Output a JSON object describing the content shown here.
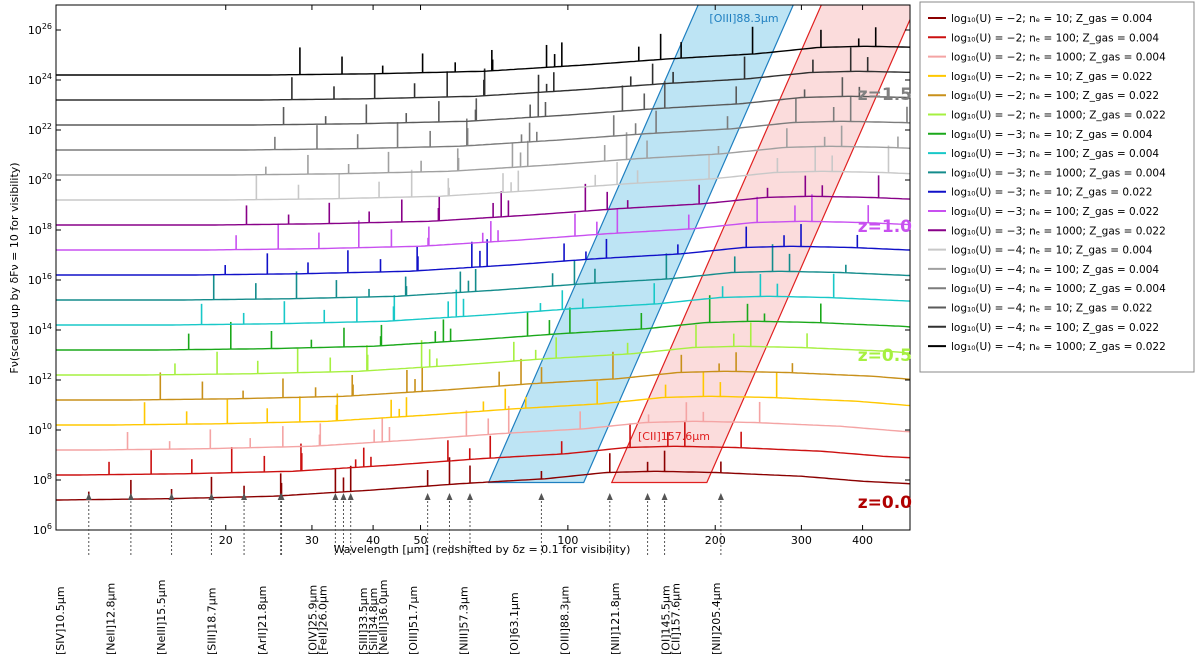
{
  "chart_data": {
    "type": "line",
    "ylabel": "Fν(scaled up by δFν = 10 for visibility)",
    "xlabel": "Wavelength [μm] (redshifted by δz = 0.1 for visibility)",
    "xscale": "log",
    "yscale": "log",
    "xlim": [
      9.0,
      500
    ],
    "ylim": [
      1000000.0,
      1e+27
    ],
    "x_ticks": [
      {
        "value": 20,
        "label": "20"
      },
      {
        "value": 30,
        "label": "30"
      },
      {
        "value": 40,
        "label": "40"
      },
      {
        "value": 50,
        "label": "50"
      },
      {
        "value": 100,
        "label": "100"
      },
      {
        "value": 200,
        "label": "200"
      },
      {
        "value": 300,
        "label": "300"
      },
      {
        "value": 400,
        "label": "400"
      }
    ],
    "y_ticks": [
      {
        "exp": 6,
        "label": "10^6"
      },
      {
        "exp": 8,
        "label": "10^8"
      },
      {
        "exp": 10,
        "label": "10^10"
      },
      {
        "exp": 12,
        "label": "10^12"
      },
      {
        "exp": 14,
        "label": "10^14"
      },
      {
        "exp": 16,
        "label": "10^16"
      },
      {
        "exp": 18,
        "label": "10^18"
      },
      {
        "exp": 20,
        "label": "10^20"
      },
      {
        "exp": 22,
        "label": "10^22"
      },
      {
        "exp": 24,
        "label": "10^24"
      },
      {
        "exp": 26,
        "label": "10^26"
      }
    ],
    "series": [
      {
        "legend": [
          "−2",
          "10",
          "0.004"
        ],
        "color": "#8b0000"
      },
      {
        "legend": [
          "−2",
          "100",
          "0.004"
        ],
        "color": "#cc1010"
      },
      {
        "legend": [
          "−2",
          "1000",
          "0.004"
        ],
        "color": "#f4a4a4"
      },
      {
        "legend": [
          "−2",
          "10",
          "0.022"
        ],
        "color": "#ffc800"
      },
      {
        "legend": [
          "−2",
          "100",
          "0.022"
        ],
        "color": "#c8901a"
      },
      {
        "legend": [
          "−2",
          "1000",
          "0.022"
        ],
        "color": "#a6f040"
      },
      {
        "legend": [
          "−3",
          "10",
          "0.004"
        ],
        "color": "#1aa81a"
      },
      {
        "legend": [
          "−3",
          "100",
          "0.004"
        ],
        "color": "#18c8c8"
      },
      {
        "legend": [
          "−3",
          "1000",
          "0.004"
        ],
        "color": "#148c8c"
      },
      {
        "legend": [
          "−3",
          "10",
          "0.022"
        ],
        "color": "#1010c8"
      },
      {
        "legend": [
          "−3",
          "100",
          "0.022"
        ],
        "color": "#c850f0"
      },
      {
        "legend": [
          "−3",
          "1000",
          "0.022"
        ],
        "color": "#880088"
      },
      {
        "legend": [
          "−4",
          "10",
          "0.004"
        ],
        "color": "#c8c8c8"
      },
      {
        "legend": [
          "−4",
          "100",
          "0.004"
        ],
        "color": "#a0a0a0"
      },
      {
        "legend": [
          "−4",
          "1000",
          "0.004"
        ],
        "color": "#7c7c7c"
      },
      {
        "legend": [
          "−4",
          "10",
          "0.022"
        ],
        "color": "#5a5a5a"
      },
      {
        "legend": [
          "−4",
          "100",
          "0.022"
        ],
        "color": "#303030"
      },
      {
        "legend": [
          "−4",
          "1000",
          "0.022"
        ],
        "color": "#000000"
      }
    ],
    "continuum_base_log": [
      7.2,
      7.25,
      7.35,
      7.6,
      7.85,
      8.05,
      8.3,
      8.35,
      8.3,
      8.15,
      7.95,
      7.85
    ],
    "continuum_base_x": [
      9.0,
      15,
      25,
      40,
      60,
      90,
      120,
      150,
      200,
      300,
      400,
      500
    ],
    "lines": [
      {
        "label": "[SIV]10.5μm",
        "rest": 10.5
      },
      {
        "label": "[NeII]12.8μm",
        "rest": 12.8
      },
      {
        "label": "[NeIII]15.5μm",
        "rest": 15.5
      },
      {
        "label": "[SIII]18.7μm",
        "rest": 18.7
      },
      {
        "label": "[ArII]21.8μm",
        "rest": 21.8
      },
      {
        "label": "[OIV]25.9μm",
        "rest": 25.9
      },
      {
        "label": "[FeII]26.0μm",
        "rest": 26.0
      },
      {
        "label": "[SIII]33.5μm",
        "rest": 33.5
      },
      {
        "label": "[SiII]34.8μm",
        "rest": 34.8
      },
      {
        "label": "[NeIII]36.0μm",
        "rest": 36.0
      },
      {
        "label": "[OIII]51.7μm",
        "rest": 51.7
      },
      {
        "label": "[NIII]57.3μm",
        "rest": 57.3
      },
      {
        "label": "[OI]63.1μm",
        "rest": 63.1
      },
      {
        "label": "[OIII]88.3μm",
        "rest": 88.3
      },
      {
        "label": "[NII]121.8μm",
        "rest": 121.8
      },
      {
        "label": "[OI]145.5μm",
        "rest": 145.5
      },
      {
        "label": "[CII]157.6μm",
        "rest": 157.6
      },
      {
        "label": "[NII]205.4μm",
        "rest": 205.4
      }
    ],
    "line_label_columns": [
      {
        "text": "[SIV]10.5μm"
      },
      {
        "text": "[NeII]12.8μm"
      },
      {
        "text": "[NeIII]15.5μm"
      },
      {
        "text": "[SIII]18.7μm"
      },
      {
        "text": "[ArII]21.8μm"
      },
      {
        "text": "[OIV]25.9μm",
        "text2": "[FeII]26.0μm"
      },
      {
        "text": "[SIII]33.5μm",
        "text2": "[SiII]34.8μm",
        "text3": "[NeIII]36.0μm"
      },
      {
        "text": "[OIII]51.7μm"
      },
      {
        "text": "[NIII]57.3μm"
      },
      {
        "text": "[OI]63.1μm"
      },
      {
        "text": "[OIII]88.3μm"
      },
      {
        "text": "[NII]121.8μm"
      },
      {
        "text": "[OI]145.5μm",
        "text2": "[CII]157.6μm"
      },
      {
        "text": "[NII]205.4μm"
      }
    ],
    "bands": [
      {
        "label": "[OIII]88.3μm",
        "rest": 88.3,
        "color": "#1f7fc0",
        "fill": "#87ceeb"
      },
      {
        "label": "[CII]157.6μm",
        "rest": 157.6,
        "color": "#e02020",
        "fill": "#f8c0c0"
      }
    ],
    "redshift_labels": [
      {
        "text": "z=1.5",
        "color": "#808080"
      },
      {
        "text": "z=1.0",
        "color": "#c850f0"
      },
      {
        "text": "z=0.5",
        "color": "#a6f040"
      },
      {
        "text": "z=0.0",
        "color": "#b00000"
      }
    ]
  }
}
